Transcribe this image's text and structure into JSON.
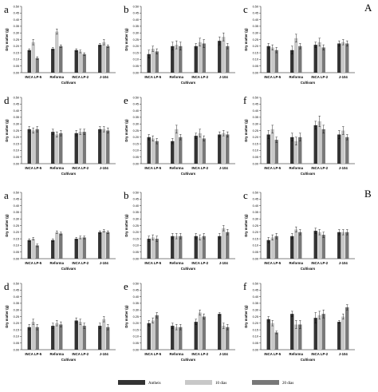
{
  "figure": {
    "group_labels": [
      "A",
      "B"
    ],
    "legend": [
      {
        "label": "Antheis",
        "color": "#333333"
      },
      {
        "label": "10 dias",
        "color": "#c8c8c8"
      },
      {
        "label": "20 dias",
        "color": "#787878"
      }
    ]
  },
  "chart_data": [
    {
      "type": "bar",
      "letter": "a",
      "xlabel": "Cultivars",
      "ylabel": "Dry matter (g)",
      "categories": [
        "INCA LP-5",
        "Reforma",
        "INCA LP-2",
        "J-104"
      ],
      "y_ticks": [
        "0.00",
        "0.05",
        "0.10",
        "0.15",
        "0.20",
        "0.25",
        "0.30",
        "0.35",
        "0.40",
        "0.45",
        "0.50"
      ],
      "ylim": [
        0,
        0.5
      ],
      "series": [
        {
          "name": "Antheis",
          "values": [
            0.17,
            0.18,
            0.17,
            0.21
          ],
          "errors": [
            0.01,
            0.01,
            0.01,
            0.01
          ]
        },
        {
          "name": "10 dias",
          "values": [
            0.23,
            0.31,
            0.16,
            0.23
          ],
          "errors": [
            0.02,
            0.02,
            0.01,
            0.02
          ]
        },
        {
          "name": "20 dias",
          "values": [
            0.11,
            0.2,
            0.14,
            0.2
          ],
          "errors": [
            0.01,
            0.01,
            0.01,
            0.01
          ]
        }
      ]
    },
    {
      "type": "bar",
      "letter": "b",
      "xlabel": "Cultivars",
      "ylabel": "Dry matter (g)",
      "categories": [
        "INCA LP-5",
        "Reforma",
        "INCA LP-2",
        "J-104"
      ],
      "y_ticks": [
        "0.00",
        "0.05",
        "0.10",
        "0.15",
        "0.20",
        "0.25",
        "0.30",
        "0.35",
        "0.40",
        "0.45",
        "0.50"
      ],
      "ylim": [
        0,
        0.5
      ],
      "series": [
        {
          "name": "Antheis",
          "values": [
            0.14,
            0.2,
            0.2,
            0.24
          ],
          "errors": [
            0.03,
            0.03,
            0.02,
            0.03
          ]
        },
        {
          "name": "10 dias",
          "values": [
            0.18,
            0.21,
            0.23,
            0.27
          ],
          "errors": [
            0.02,
            0.03,
            0.03,
            0.03
          ]
        },
        {
          "name": "20 dias",
          "values": [
            0.16,
            0.2,
            0.22,
            0.2
          ],
          "errors": [
            0.02,
            0.03,
            0.03,
            0.02
          ]
        }
      ]
    },
    {
      "type": "bar",
      "letter": "c",
      "xlabel": "Cultivars",
      "ylabel": "Dry matter (g)",
      "categories": [
        "INCA LP-5",
        "Reforma",
        "INCA LP-2",
        "J-104"
      ],
      "y_ticks": [
        "0.00",
        "0.05",
        "0.10",
        "0.15",
        "0.20",
        "0.25",
        "0.30",
        "0.35",
        "0.40",
        "0.45",
        "0.50"
      ],
      "ylim": [
        0,
        0.5
      ],
      "series": [
        {
          "name": "Antheis",
          "values": [
            0.2,
            0.17,
            0.21,
            0.22
          ],
          "errors": [
            0.02,
            0.03,
            0.02,
            0.02
          ]
        },
        {
          "name": "10 dias",
          "values": [
            0.19,
            0.26,
            0.23,
            0.23
          ],
          "errors": [
            0.02,
            0.03,
            0.03,
            0.02
          ]
        },
        {
          "name": "20 dias",
          "values": [
            0.17,
            0.2,
            0.19,
            0.22
          ],
          "errors": [
            0.02,
            0.02,
            0.02,
            0.02
          ]
        }
      ]
    },
    {
      "type": "bar",
      "letter": "d",
      "xlabel": "Cultivars",
      "ylabel": "Dry matter (g)",
      "categories": [
        "INCA LP-5",
        "Reforma",
        "INCA LP-2",
        "J-104"
      ],
      "y_ticks": [
        "0.00",
        "0.05",
        "0.10",
        "0.15",
        "0.20",
        "0.25",
        "0.30",
        "0.35",
        "0.40",
        "0.45",
        "0.50"
      ],
      "ylim": [
        0,
        0.5
      ],
      "series": [
        {
          "name": "Antheis",
          "values": [
            0.26,
            0.24,
            0.23,
            0.26
          ],
          "errors": [
            0.02,
            0.02,
            0.02,
            0.02
          ]
        },
        {
          "name": "10 dias",
          "values": [
            0.25,
            0.22,
            0.24,
            0.26
          ],
          "errors": [
            0.02,
            0.02,
            0.02,
            0.02
          ]
        },
        {
          "name": "20 dias",
          "values": [
            0.26,
            0.23,
            0.24,
            0.25
          ],
          "errors": [
            0.02,
            0.02,
            0.02,
            0.02
          ]
        }
      ]
    },
    {
      "type": "bar",
      "letter": "e",
      "xlabel": "Cultivars",
      "ylabel": "Dry matter (g)",
      "categories": [
        "INCA LP-5",
        "Reforma",
        "INCA LP-2",
        "J-104"
      ],
      "y_ticks": [
        "0.00",
        "0.05",
        "0.10",
        "0.15",
        "0.20",
        "0.25",
        "0.30",
        "0.35",
        "0.40",
        "0.45",
        "0.50"
      ],
      "ylim": [
        0,
        0.5
      ],
      "series": [
        {
          "name": "Antheis",
          "values": [
            0.2,
            0.17,
            0.21,
            0.22
          ],
          "errors": [
            0.02,
            0.02,
            0.02,
            0.02
          ]
        },
        {
          "name": "10 dias",
          "values": [
            0.19,
            0.26,
            0.23,
            0.23
          ],
          "errors": [
            0.02,
            0.03,
            0.03,
            0.02
          ]
        },
        {
          "name": "20 dias",
          "values": [
            0.17,
            0.2,
            0.19,
            0.22
          ],
          "errors": [
            0.02,
            0.02,
            0.02,
            0.02
          ]
        }
      ]
    },
    {
      "type": "bar",
      "letter": "f",
      "xlabel": "Cultivars",
      "ylabel": "Dry matter (g)",
      "categories": [
        "INCA LP-5",
        "Reforma",
        "INCA LP-2",
        "J-104"
      ],
      "y_ticks": [
        "0.00",
        "0.05",
        "0.10",
        "0.15",
        "0.20",
        "0.25",
        "0.30",
        "0.35",
        "0.40",
        "0.45",
        "0.50"
      ],
      "ylim": [
        0,
        0.5
      ],
      "series": [
        {
          "name": "Antheis",
          "values": [
            0.22,
            0.2,
            0.29,
            0.22
          ],
          "errors": [
            0.03,
            0.03,
            0.03,
            0.03
          ]
        },
        {
          "name": "10 dias",
          "values": [
            0.26,
            0.17,
            0.32,
            0.25
          ],
          "errors": [
            0.03,
            0.03,
            0.04,
            0.03
          ]
        },
        {
          "name": "20 dias",
          "values": [
            0.18,
            0.2,
            0.26,
            0.2
          ],
          "errors": [
            0.02,
            0.03,
            0.03,
            0.02
          ]
        }
      ]
    },
    {
      "type": "bar",
      "letter": "a",
      "xlabel": "Cultivars",
      "ylabel": "Dry matter (g)",
      "categories": [
        "INCA LP-5",
        "Reforma",
        "INCA LP-2",
        "J-104"
      ],
      "y_ticks": [
        "0.00",
        "0.05",
        "0.10",
        "0.15",
        "0.20",
        "0.25",
        "0.30",
        "0.35",
        "0.40",
        "0.45",
        "0.50"
      ],
      "ylim": [
        0,
        0.5
      ],
      "series": [
        {
          "name": "Antheis",
          "values": [
            0.14,
            0.14,
            0.15,
            0.2
          ],
          "errors": [
            0.01,
            0.01,
            0.01,
            0.01
          ]
        },
        {
          "name": "10 dias",
          "values": [
            0.15,
            0.2,
            0.16,
            0.21
          ],
          "errors": [
            0.01,
            0.01,
            0.01,
            0.01
          ]
        },
        {
          "name": "20 dias",
          "values": [
            0.1,
            0.19,
            0.16,
            0.2
          ],
          "errors": [
            0.01,
            0.01,
            0.01,
            0.01
          ]
        }
      ]
    },
    {
      "type": "bar",
      "letter": "b",
      "xlabel": "Cultivars",
      "ylabel": "Dry matter (g)",
      "categories": [
        "INCA LP-5",
        "Reforma",
        "INCA LP-2",
        "J-104"
      ],
      "y_ticks": [
        "0.00",
        "0.05",
        "0.10",
        "0.15",
        "0.20",
        "0.25",
        "0.30",
        "0.35",
        "0.40",
        "0.45",
        "0.50"
      ],
      "ylim": [
        0,
        0.5
      ],
      "series": [
        {
          "name": "Antheis",
          "values": [
            0.15,
            0.17,
            0.17,
            0.17
          ],
          "errors": [
            0.02,
            0.02,
            0.02,
            0.02
          ]
        },
        {
          "name": "10 dias",
          "values": [
            0.16,
            0.17,
            0.16,
            0.23
          ],
          "errors": [
            0.02,
            0.02,
            0.02,
            0.02
          ]
        },
        {
          "name": "20 dias",
          "values": [
            0.15,
            0.17,
            0.17,
            0.2
          ],
          "errors": [
            0.02,
            0.02,
            0.02,
            0.02
          ]
        }
      ]
    },
    {
      "type": "bar",
      "letter": "c",
      "xlabel": "Cultivars",
      "ylabel": "Dry matter (g)",
      "categories": [
        "INCA LP-5",
        "Reforma",
        "INCA LP-2",
        "J-104"
      ],
      "y_ticks": [
        "0.00",
        "0.05",
        "0.10",
        "0.15",
        "0.20",
        "0.25",
        "0.30",
        "0.35",
        "0.40",
        "0.45",
        "0.50"
      ],
      "ylim": [
        0,
        0.5
      ],
      "series": [
        {
          "name": "Antheis",
          "values": [
            0.14,
            0.17,
            0.21,
            0.2
          ],
          "errors": [
            0.02,
            0.02,
            0.02,
            0.02
          ]
        },
        {
          "name": "10 dias",
          "values": [
            0.16,
            0.22,
            0.2,
            0.2
          ],
          "errors": [
            0.02,
            0.02,
            0.02,
            0.02
          ]
        },
        {
          "name": "20 dias",
          "values": [
            0.17,
            0.2,
            0.18,
            0.2
          ],
          "errors": [
            0.02,
            0.02,
            0.02,
            0.02
          ]
        }
      ]
    },
    {
      "type": "bar",
      "letter": "d",
      "xlabel": "Cultivars",
      "ylabel": "Dry matter (g)",
      "categories": [
        "INCA LP-5",
        "Reforma",
        "INCA LP-2",
        "J-104"
      ],
      "y_ticks": [
        "0.00",
        "0.05",
        "0.10",
        "0.15",
        "0.20",
        "0.25",
        "0.30",
        "0.35",
        "0.40",
        "0.45",
        "0.50"
      ],
      "ylim": [
        0,
        0.5
      ],
      "series": [
        {
          "name": "Antheis",
          "values": [
            0.17,
            0.18,
            0.22,
            0.18
          ],
          "errors": [
            0.02,
            0.02,
            0.02,
            0.02
          ]
        },
        {
          "name": "10 dias",
          "values": [
            0.21,
            0.2,
            0.21,
            0.23
          ],
          "errors": [
            0.02,
            0.02,
            0.02,
            0.02
          ]
        },
        {
          "name": "20 dias",
          "values": [
            0.17,
            0.19,
            0.18,
            0.17
          ],
          "errors": [
            0.02,
            0.02,
            0.02,
            0.02
          ]
        }
      ]
    },
    {
      "type": "bar",
      "letter": "e",
      "xlabel": "Cultivars",
      "ylabel": "Dry matter (g)",
      "categories": [
        "INCA LP-5",
        "Reforma",
        "INCA LP-2",
        "J-104"
      ],
      "y_ticks": [
        "0.00",
        "0.05",
        "0.10",
        "0.15",
        "0.20",
        "0.25",
        "0.30",
        "0.35",
        "0.40",
        "0.45",
        "0.50"
      ],
      "ylim": [
        0,
        0.5
      ],
      "series": [
        {
          "name": "Antheis",
          "values": [
            0.2,
            0.18,
            0.21,
            0.27
          ],
          "errors": [
            0.02,
            0.02,
            0.02,
            0.01
          ]
        },
        {
          "name": "10 dias",
          "values": [
            0.22,
            0.17,
            0.28,
            0.18
          ],
          "errors": [
            0.02,
            0.02,
            0.02,
            0.02
          ]
        },
        {
          "name": "20 dias",
          "values": [
            0.26,
            0.17,
            0.25,
            0.17
          ],
          "errors": [
            0.02,
            0.02,
            0.02,
            0.02
          ]
        }
      ]
    },
    {
      "type": "bar",
      "letter": "f",
      "xlabel": "Cultivars",
      "ylabel": "Dry matter (g)",
      "categories": [
        "INCA LP-5",
        "Reforma",
        "INCA LP-2",
        "J-104"
      ],
      "y_ticks": [
        "0.00",
        "0.05",
        "0.10",
        "0.15",
        "0.20",
        "0.25",
        "0.30",
        "0.35",
        "0.40",
        "0.45",
        "0.50"
      ],
      "ylim": [
        0,
        0.5
      ],
      "series": [
        {
          "name": "Antheis",
          "values": [
            0.23,
            0.27,
            0.24,
            0.21
          ],
          "errors": [
            0.02,
            0.02,
            0.04,
            0.01
          ]
        },
        {
          "name": "10 dias",
          "values": [
            0.2,
            0.19,
            0.26,
            0.25
          ],
          "errors": [
            0.02,
            0.03,
            0.03,
            0.02
          ]
        },
        {
          "name": "20 dias",
          "values": [
            0.13,
            0.19,
            0.27,
            0.32
          ],
          "errors": [
            0.01,
            0.03,
            0.03,
            0.02
          ]
        }
      ]
    }
  ]
}
